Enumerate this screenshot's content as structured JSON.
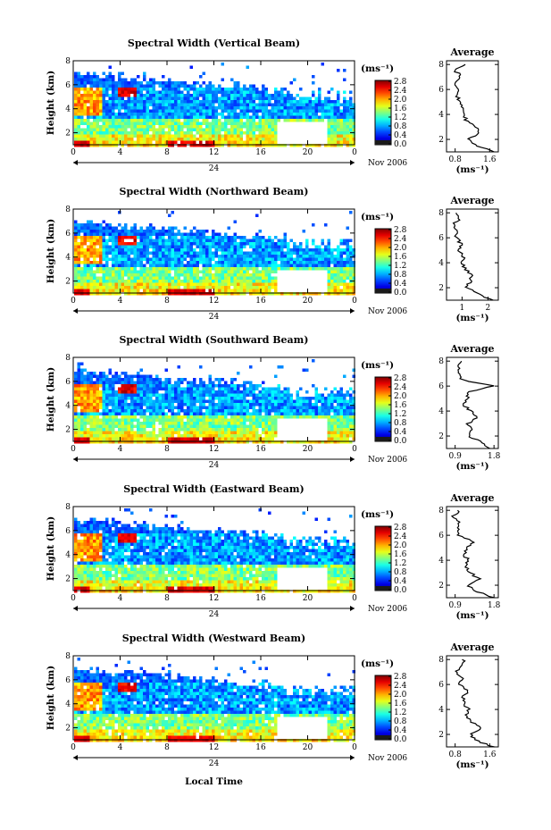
{
  "figure": {
    "xlabel": "Local Time",
    "colorbar_ticks": [
      "2.8",
      "2.4",
      "2.0",
      "1.6",
      "1.2",
      "0.8",
      "0.4",
      "0.0"
    ],
    "date_label": "Nov 2006",
    "time_ticks": [
      "0",
      "4",
      "8",
      "12",
      "16",
      "20",
      "0"
    ],
    "day_label": "24",
    "height_ticks": [
      "8",
      "6",
      "4",
      "2"
    ],
    "ylabel": "Height (km)",
    "unit_label": "(ms⁻¹)",
    "avg_title": "Average"
  },
  "chart_data": [
    {
      "type": "heatmap",
      "title": "Spectral Width (Vertical Beam)",
      "ylabel": "Height (km)",
      "xlabel": "",
      "x_range_hours": [
        0,
        24
      ],
      "y_range_km": [
        1,
        8
      ],
      "colorbar_range": [
        0.0,
        2.8
      ],
      "colorbar_label": "(ms⁻¹)",
      "colorbar_tick_labels": [
        "2.8",
        "2.4",
        "2.0",
        "1.6",
        "1.2",
        "0.8",
        "0.4",
        "0.0"
      ],
      "date_label": "Nov 2006",
      "day_label": "24",
      "profile": {
        "title": "Average",
        "xlabel": "(ms⁻¹)",
        "x_tick_labels": [
          "0.8",
          "1.6"
        ],
        "xlim": [
          0.6,
          1.8
        ],
        "y_tick_labels": [
          "8",
          "6",
          "4",
          "2"
        ],
        "height_km": [
          1,
          1.5,
          2,
          2.5,
          3,
          3.5,
          4,
          4.5,
          5,
          5.5,
          6,
          6.5,
          7,
          7.5,
          8
        ],
        "values": [
          1.7,
          1.3,
          1.1,
          1.35,
          1.3,
          1.05,
          1.0,
          0.95,
          0.9,
          0.85,
          0.9,
          0.75,
          0.95,
          0.8,
          1.0
        ]
      }
    },
    {
      "type": "heatmap",
      "title": "Spectral Width (Northward Beam)",
      "ylabel": "Height (km)",
      "xlabel": "",
      "x_range_hours": [
        0,
        24
      ],
      "y_range_km": [
        1,
        8
      ],
      "colorbar_range": [
        0.0,
        2.8
      ],
      "colorbar_label": "(ms⁻¹)",
      "colorbar_tick_labels": [
        "2.8",
        "2.4",
        "2.0",
        "1.6",
        "1.2",
        "0.8",
        "0.4",
        "0.0"
      ],
      "date_label": "Nov 2006",
      "day_label": "24",
      "profile": {
        "title": "Average",
        "xlabel": "(ms⁻¹)",
        "x_tick_labels": [
          "1",
          "2"
        ],
        "xlim": [
          0.4,
          2.4
        ],
        "y_tick_labels": [
          "8",
          "6",
          "4",
          "2"
        ],
        "height_km": [
          1,
          1.5,
          2,
          2.5,
          3,
          3.5,
          4,
          4.5,
          5,
          5.5,
          6,
          6.5,
          7,
          7.5,
          8
        ],
        "values": [
          2.2,
          1.6,
          1.2,
          1.3,
          1.4,
          1.1,
          1.0,
          1.05,
          0.9,
          0.95,
          0.8,
          0.75,
          0.65,
          0.9,
          0.7
        ]
      }
    },
    {
      "type": "heatmap",
      "title": "Spectral Width (Southward Beam)",
      "ylabel": "Height (km)",
      "xlabel": "",
      "x_range_hours": [
        0,
        24
      ],
      "y_range_km": [
        1,
        8
      ],
      "colorbar_range": [
        0.0,
        2.8
      ],
      "colorbar_label": "(ms⁻¹)",
      "colorbar_tick_labels": [
        "2.8",
        "2.4",
        "2.0",
        "1.6",
        "1.2",
        "0.8",
        "0.4",
        "0.0"
      ],
      "date_label": "Nov 2006",
      "day_label": "24",
      "profile": {
        "title": "Average",
        "xlabel": "(ms⁻¹)",
        "x_tick_labels": [
          "0.9",
          "1.8"
        ],
        "xlim": [
          0.7,
          1.9
        ],
        "y_tick_labels": [
          "8",
          "6",
          "4",
          "2"
        ],
        "height_km": [
          1,
          1.5,
          2,
          2.5,
          3,
          3.5,
          4,
          4.5,
          5,
          5.5,
          6,
          6.5,
          7,
          7.5,
          8
        ],
        "values": [
          1.7,
          1.5,
          1.2,
          1.3,
          1.2,
          1.4,
          1.25,
          1.1,
          1.2,
          1.15,
          1.8,
          1.05,
          1.0,
          1.0,
          1.0
        ]
      }
    },
    {
      "type": "heatmap",
      "title": "Spectral Width (Eastward Beam)",
      "ylabel": "Height (km)",
      "xlabel": "",
      "x_range_hours": [
        0,
        24
      ],
      "y_range_km": [
        1,
        8
      ],
      "colorbar_range": [
        0.0,
        2.8
      ],
      "colorbar_label": "(ms⁻¹)",
      "colorbar_tick_labels": [
        "2.8",
        "2.4",
        "2.0",
        "1.6",
        "1.2",
        "0.8",
        "0.4",
        "0.0"
      ],
      "date_label": "Nov 2006",
      "day_label": "24",
      "profile": {
        "title": "Average",
        "xlabel": "(ms⁻¹)",
        "x_tick_labels": [
          "0.9",
          "1.8"
        ],
        "xlim": [
          0.7,
          1.9
        ],
        "y_tick_labels": [
          "8",
          "6",
          "4",
          "2"
        ],
        "height_km": [
          1,
          1.5,
          2,
          2.5,
          3,
          3.5,
          4,
          4.5,
          5,
          5.5,
          6,
          6.5,
          7,
          7.5,
          8
        ],
        "values": [
          1.8,
          1.4,
          1.2,
          1.45,
          1.25,
          1.15,
          1.2,
          1.1,
          1.15,
          1.35,
          1.0,
          0.95,
          1.0,
          0.85,
          1.0
        ]
      }
    },
    {
      "type": "heatmap",
      "title": "Spectral Width (Westward Beam)",
      "ylabel": "Height (km)",
      "xlabel": "Local Time",
      "x_range_hours": [
        0,
        24
      ],
      "y_range_km": [
        1,
        8
      ],
      "colorbar_range": [
        0.0,
        2.8
      ],
      "colorbar_label": "(ms⁻¹)",
      "colorbar_tick_labels": [
        "2.8",
        "2.4",
        "2.0",
        "1.6",
        "1.2",
        "0.8",
        "0.4",
        "0.0"
      ],
      "date_label": "Nov 2006",
      "day_label": "24",
      "profile": {
        "title": "Average",
        "xlabel": "(ms⁻¹)",
        "x_tick_labels": [
          "0.8",
          "1.6"
        ],
        "xlim": [
          0.6,
          1.8
        ],
        "y_tick_labels": [
          "8",
          "6",
          "4",
          "2"
        ],
        "height_km": [
          1,
          1.5,
          2,
          2.5,
          3,
          3.5,
          4,
          4.5,
          5,
          5.5,
          6,
          6.5,
          7,
          7.5,
          8
        ],
        "values": [
          1.7,
          1.3,
          1.15,
          1.4,
          1.2,
          1.05,
          1.1,
          1.0,
          1.0,
          1.1,
          0.9,
          0.95,
          0.8,
          1.0,
          1.0
        ]
      }
    }
  ]
}
